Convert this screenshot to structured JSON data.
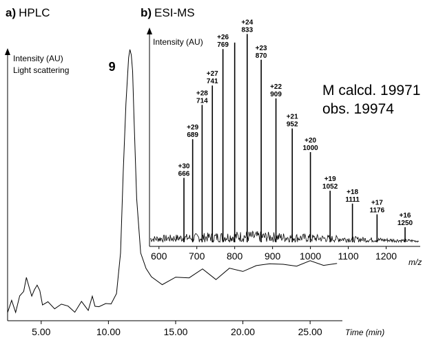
{
  "chart_data": [
    {
      "type": "line",
      "panel_letter": "a)",
      "title": "HPLC",
      "ylabel_lines": [
        "Intensity (AU)",
        "Light scattering"
      ],
      "xlabel": "Time (min)",
      "xlim": [
        2.5,
        27.4
      ],
      "ylim": [
        0,
        100
      ],
      "x_ticks": [
        5.0,
        10.0,
        15.0,
        20.0,
        25.0
      ],
      "x_tick_labels": [
        "5.00",
        "10.00",
        "15.00",
        "20.00",
        "25.00"
      ],
      "peak_label": "9",
      "peak": {
        "x": 11.7,
        "y": 100
      },
      "series": [
        {
          "x": [
            2.5,
            2.8,
            3.1,
            3.4,
            3.7,
            3.9,
            4.1,
            4.3,
            4.5,
            4.7,
            4.9,
            5.1,
            5.5,
            6.0,
            6.5,
            7.0,
            7.5,
            8.0,
            8.5,
            8.8,
            9.0,
            9.3,
            9.8,
            10.2,
            10.6,
            10.9,
            11.1,
            11.3,
            11.5,
            11.6,
            11.7,
            11.8,
            11.9,
            12.1,
            12.4,
            12.8,
            13.2,
            14.0,
            15.0,
            16.0,
            17.0,
            18.0,
            19.0,
            20.0,
            21.0,
            22.0,
            23.0,
            24.0,
            25.0,
            26.0,
            27.0
          ],
          "y": [
            3,
            7,
            4,
            8,
            12,
            15,
            13,
            9,
            11,
            14,
            10,
            7,
            6,
            5,
            6,
            5,
            4,
            6,
            5,
            8,
            6,
            5,
            6,
            7,
            10,
            25,
            55,
            80,
            97,
            100,
            98,
            92,
            75,
            45,
            25,
            19,
            16,
            14,
            15,
            17,
            18,
            16,
            19,
            18,
            21,
            20,
            22,
            19,
            23,
            20,
            21
          ]
        }
      ]
    },
    {
      "type": "bar",
      "panel_letter": "b)",
      "title": "ESI-MS",
      "ylabel": "Intensity (AU)",
      "xlabel": "m/z",
      "xlim": [
        575,
        1290
      ],
      "ylim": [
        0,
        100
      ],
      "x_ticks": [
        600,
        700,
        800,
        900,
        1000,
        1100,
        1200
      ],
      "x_tick_labels": [
        "600",
        "700",
        "800",
        "900",
        "1000",
        "1100",
        "1200"
      ],
      "annotation_lines": [
        "M calcd. 19971",
        "obs. 19974"
      ],
      "peaks": [
        {
          "charge": "+30",
          "mz": 666,
          "intensity": 30
        },
        {
          "charge": "+29",
          "mz": 689,
          "intensity": 48
        },
        {
          "charge": "+28",
          "mz": 714,
          "intensity": 64
        },
        {
          "charge": "+27",
          "mz": 741,
          "intensity": 73
        },
        {
          "charge": "+26",
          "mz": 769,
          "intensity": 90
        },
        {
          "charge": "+24",
          "mz": 833,
          "intensity": 97
        },
        {
          "charge": "+23",
          "mz": 870,
          "intensity": 85
        },
        {
          "charge": "+22",
          "mz": 909,
          "intensity": 67
        },
        {
          "charge": "+21",
          "mz": 952,
          "intensity": 53
        },
        {
          "charge": "+20",
          "mz": 1000,
          "intensity": 42
        },
        {
          "charge": "+19",
          "mz": 1052,
          "intensity": 24
        },
        {
          "charge": "+18",
          "mz": 1111,
          "intensity": 18
        },
        {
          "charge": "+17",
          "mz": 1176,
          "intensity": 13
        },
        {
          "charge": "+16",
          "mz": 1250,
          "intensity": 7
        }
      ],
      "unlabeled_peaks": [
        {
          "mz": 800,
          "intensity": 93
        }
      ]
    }
  ]
}
